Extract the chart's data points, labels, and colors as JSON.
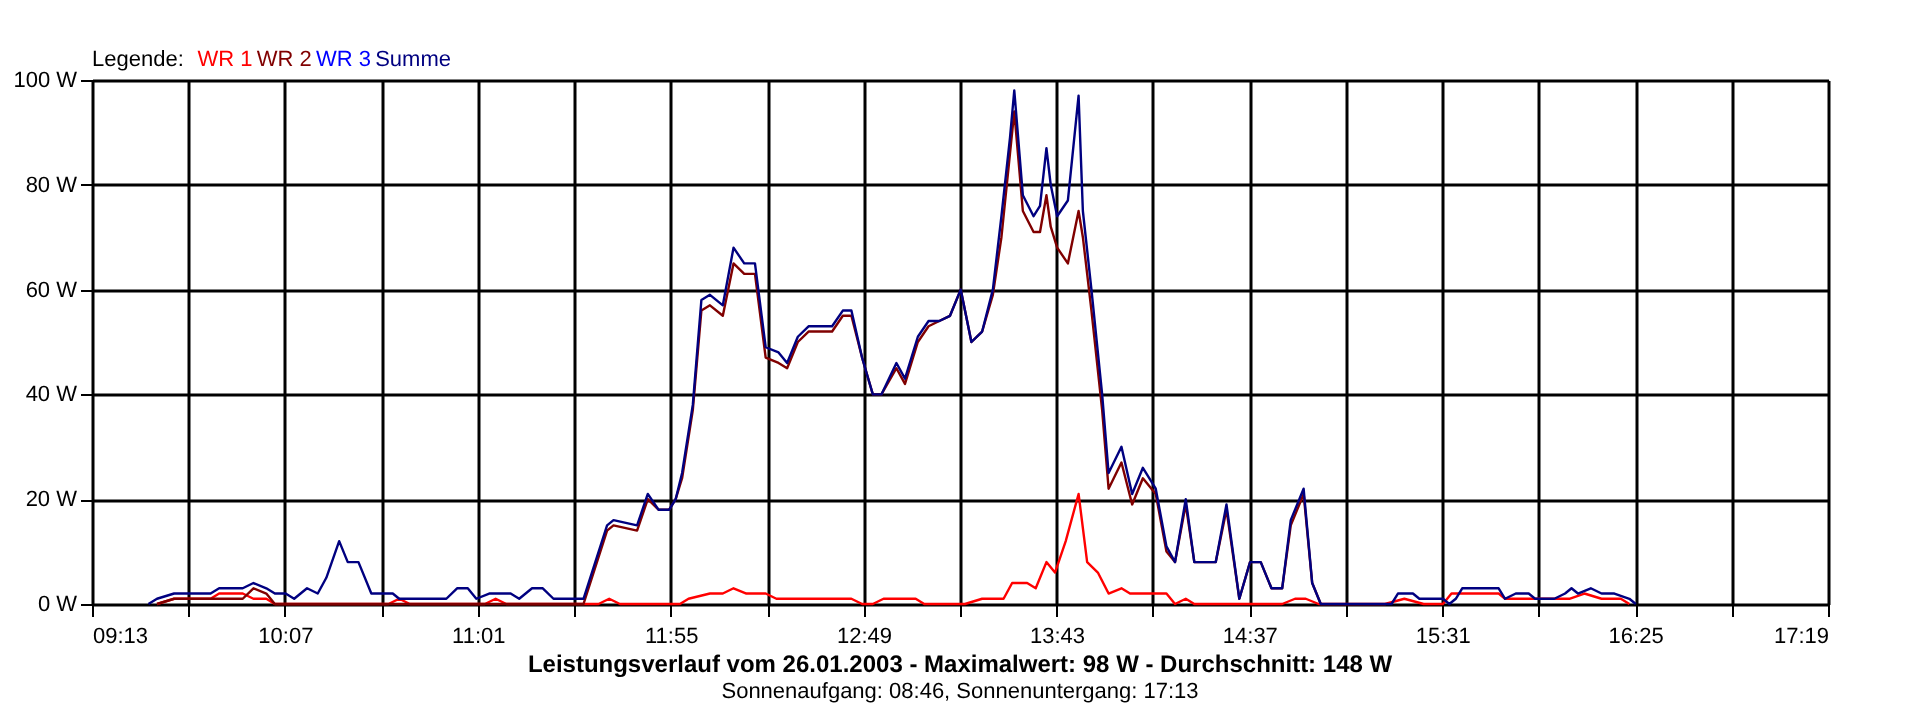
{
  "chart_data": {
    "type": "line",
    "title": "Leistungsverlauf vom 26.01.2003 - Maximalwert: 98 W - Durchschnitt: 148 W",
    "subtitle": "Sonnenaufgang: 08:46, Sonnenuntergang: 17:13",
    "legend_title": "Legende:",
    "legend": "top left",
    "grid": true,
    "marker": "none",
    "line_style": "solid",
    "xlim": [
      9.2167,
      17.3167
    ],
    "xticks": [
      {
        "value": 9.2167,
        "label": "09:13"
      },
      {
        "value": 9.6667,
        "label": null
      },
      {
        "value": 10.1167,
        "label": "10:07"
      },
      {
        "value": 10.5667,
        "label": null
      },
      {
        "value": 11.0167,
        "label": "11:01"
      },
      {
        "value": 11.4667,
        "label": null
      },
      {
        "value": 11.9167,
        "label": "11:55"
      },
      {
        "value": 12.3667,
        "label": null
      },
      {
        "value": 12.8167,
        "label": "12:49"
      },
      {
        "value": 13.2667,
        "label": null
      },
      {
        "value": 13.7167,
        "label": "13:43"
      },
      {
        "value": 14.1667,
        "label": null
      },
      {
        "value": 14.6167,
        "label": "14:37"
      },
      {
        "value": 15.0667,
        "label": null
      },
      {
        "value": 15.5167,
        "label": "15:31"
      },
      {
        "value": 15.9667,
        "label": null
      },
      {
        "value": 16.4167,
        "label": "16:25"
      },
      {
        "value": 16.8667,
        "label": null
      },
      {
        "value": 17.3167,
        "label": "17:19"
      }
    ],
    "ylim": [
      0,
      100
    ],
    "yticks": [
      {
        "value": 0,
        "label": "0 W"
      },
      {
        "value": 20,
        "label": "20 W"
      },
      {
        "value": 40,
        "label": "40 W"
      },
      {
        "value": 60,
        "label": "60 W"
      },
      {
        "value": 80,
        "label": "80 W"
      },
      {
        "value": 100,
        "label": "100 W"
      }
    ],
    "series": [
      {
        "name": "WR 1",
        "color": "#ff0000",
        "x": [
          9.52,
          9.6,
          9.77,
          9.81,
          9.92,
          9.97,
          10.03,
          10.07,
          10.6,
          10.65,
          10.7,
          11.05,
          11.1,
          11.15,
          11.58,
          11.63,
          11.68,
          11.96,
          12.0,
          12.1,
          12.16,
          12.21,
          12.27,
          12.36,
          12.41,
          12.76,
          12.81,
          12.86,
          12.91,
          13.06,
          13.1,
          13.29,
          13.37,
          13.43,
          13.47,
          13.51,
          13.58,
          13.62,
          13.67,
          13.71,
          13.76,
          13.82,
          13.86,
          13.91,
          13.96,
          14.02,
          14.06,
          14.23,
          14.27,
          14.32,
          14.36,
          14.77,
          14.83,
          14.88,
          14.94,
          15.25,
          15.34,
          15.43,
          15.52,
          15.56,
          15.78,
          15.81,
          15.95,
          16.02,
          16.11,
          16.18,
          16.26,
          16.35,
          16.39
        ],
        "values": [
          0,
          1,
          1,
          2,
          2,
          1,
          1,
          0,
          0,
          1,
          0,
          0,
          1,
          0,
          0,
          1,
          0,
          0,
          1,
          2,
          2,
          3,
          2,
          2,
          1,
          1,
          0,
          0,
          1,
          1,
          0,
          0,
          1,
          1,
          1,
          4,
          4,
          3,
          8,
          6,
          12,
          21,
          8,
          6,
          2,
          3,
          2,
          2,
          0,
          1,
          0,
          0,
          1,
          1,
          0,
          0,
          1,
          0,
          0,
          2,
          2,
          1,
          1,
          1,
          1,
          2,
          1,
          1,
          0
        ]
      },
      {
        "name": "WR 2",
        "color": "#800000",
        "x": [
          9.52,
          9.6,
          9.92,
          9.97,
          10.03,
          10.07,
          11.51,
          11.62,
          11.65,
          11.76,
          11.81,
          11.86,
          11.91,
          11.94,
          11.97,
          12.02,
          12.06,
          12.1,
          12.16,
          12.21,
          12.26,
          12.31,
          12.36,
          12.42,
          12.46,
          12.51,
          12.56,
          12.67,
          12.72,
          12.76,
          12.81,
          12.86,
          12.9,
          12.97,
          13.01,
          13.07,
          13.12,
          13.17,
          13.22,
          13.27,
          13.32,
          13.37,
          13.42,
          13.46,
          13.5,
          13.52,
          13.56,
          13.61,
          13.64,
          13.67,
          13.69,
          13.72,
          13.77,
          13.82,
          13.84,
          13.88,
          13.93,
          13.96,
          14.02,
          14.07,
          14.12,
          14.18,
          14.23,
          14.27,
          14.32,
          14.36,
          14.46,
          14.51,
          14.57,
          14.62,
          14.67,
          14.72,
          14.77,
          14.81,
          14.87,
          14.91,
          14.95
        ],
        "values": [
          0,
          1,
          1,
          3,
          2,
          0,
          0,
          14,
          15,
          14,
          20,
          18,
          18,
          20,
          24,
          37,
          56,
          57,
          55,
          65,
          63,
          63,
          47,
          46,
          45,
          50,
          52,
          52,
          55,
          55,
          47,
          40,
          40,
          45,
          42,
          50,
          53,
          54,
          55,
          60,
          50,
          52,
          59,
          70,
          86,
          94,
          75,
          71,
          71,
          78,
          72,
          68,
          65,
          75,
          70,
          56,
          37,
          22,
          27,
          19,
          24,
          21,
          10,
          8,
          19,
          8,
          8,
          18,
          1,
          8,
          8,
          3,
          3,
          15,
          21,
          4,
          0
        ]
      },
      {
        "name": "WR 3",
        "color": "#0000ff"
      },
      {
        "name": "Summe",
        "color": "#000080",
        "x": [
          9.48,
          9.52,
          9.6,
          9.77,
          9.81,
          9.92,
          9.97,
          10.03,
          10.07,
          10.12,
          10.16,
          10.22,
          10.27,
          10.31,
          10.37,
          10.41,
          10.46,
          10.52,
          10.62,
          10.65,
          10.87,
          10.92,
          10.97,
          11.01,
          11.07,
          11.17,
          11.21,
          11.27,
          11.32,
          11.37,
          11.51,
          11.62,
          11.65,
          11.76,
          11.81,
          11.86,
          11.91,
          11.94,
          11.97,
          12.02,
          12.06,
          12.1,
          12.16,
          12.21,
          12.26,
          12.31,
          12.36,
          12.42,
          12.46,
          12.51,
          12.56,
          12.67,
          12.72,
          12.76,
          12.81,
          12.86,
          12.9,
          12.97,
          13.01,
          13.07,
          13.12,
          13.17,
          13.22,
          13.27,
          13.32,
          13.37,
          13.42,
          13.46,
          13.5,
          13.52,
          13.56,
          13.61,
          13.64,
          13.67,
          13.69,
          13.72,
          13.77,
          13.82,
          13.84,
          13.88,
          13.93,
          13.96,
          14.02,
          14.07,
          14.12,
          14.18,
          14.23,
          14.27,
          14.32,
          14.36,
          14.46,
          14.51,
          14.57,
          14.62,
          14.67,
          14.72,
          14.77,
          14.81,
          14.87,
          14.91,
          14.95,
          15.28,
          15.31,
          15.38,
          15.41,
          15.52,
          15.55,
          15.58,
          15.61,
          15.78,
          15.81,
          15.86,
          15.92,
          15.95,
          16.04,
          16.09,
          16.12,
          16.15,
          16.21,
          16.26,
          16.32,
          16.39,
          16.42
        ],
        "values": [
          0,
          1,
          2,
          2,
          3,
          3,
          4,
          3,
          2,
          2,
          1,
          3,
          2,
          5,
          12,
          8,
          8,
          2,
          2,
          1,
          1,
          3,
          3,
          1,
          2,
          2,
          1,
          3,
          3,
          1,
          1,
          15,
          16,
          15,
          21,
          18,
          18,
          20,
          25,
          38,
          58,
          59,
          57,
          68,
          65,
          65,
          49,
          48,
          46,
          51,
          53,
          53,
          56,
          56,
          47,
          40,
          40,
          46,
          43,
          51,
          54,
          54,
          55,
          60,
          50,
          52,
          60,
          74,
          89,
          98,
          78,
          74,
          76,
          87,
          80,
          74,
          77,
          97,
          75,
          60,
          40,
          25,
          30,
          21,
          26,
          22,
          11,
          8,
          20,
          8,
          8,
          19,
          1,
          8,
          8,
          3,
          3,
          16,
          22,
          4,
          0,
          0,
          2,
          2,
          1,
          1,
          0,
          1,
          3,
          3,
          1,
          2,
          2,
          1,
          1,
          2,
          3,
          2,
          3,
          2,
          2,
          1,
          0
        ]
      }
    ]
  }
}
